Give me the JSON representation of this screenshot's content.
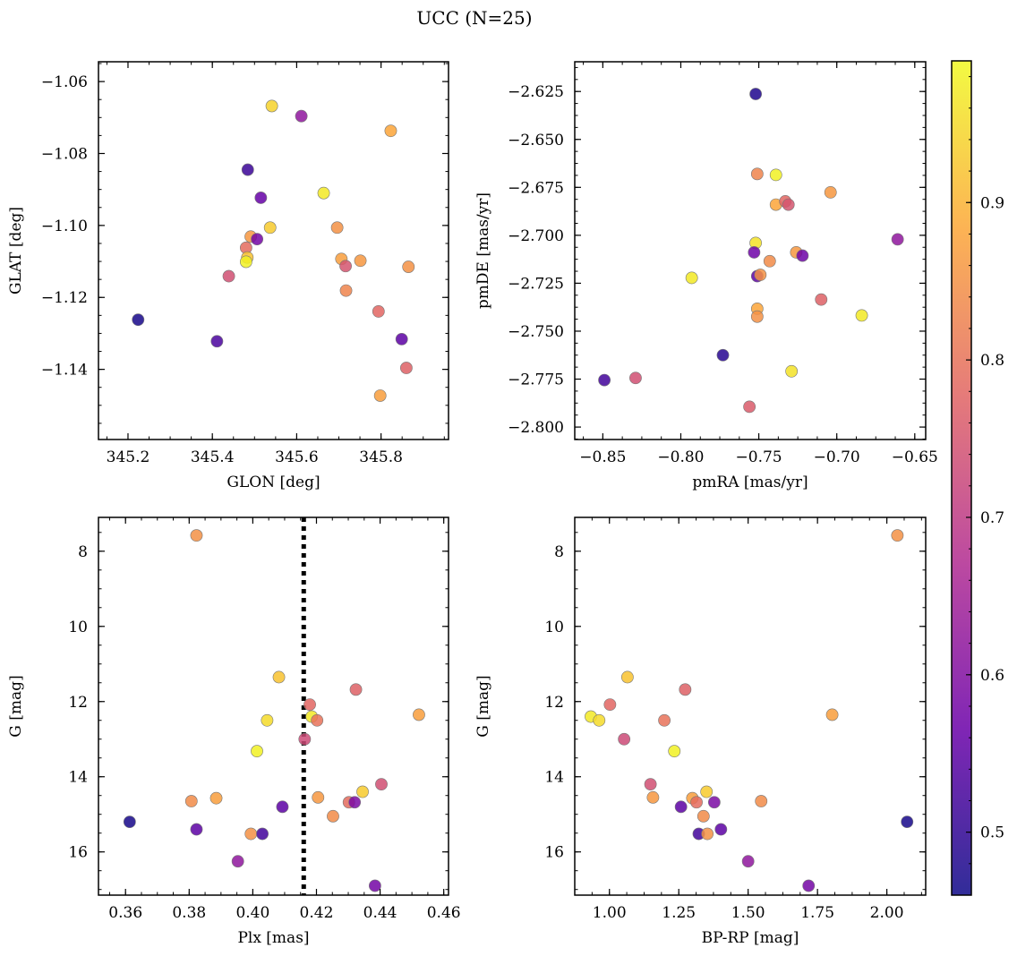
{
  "figure": {
    "title": "UCC (N=25)",
    "colorbar": {
      "range": [
        0.46,
        0.99
      ],
      "ticks": [
        0.5,
        0.6,
        0.7,
        0.8,
        0.9
      ],
      "tick_labels": [
        "0.5",
        "0.6",
        "0.7",
        "0.8",
        "0.9"
      ],
      "colormap": [
        "#0d0887",
        "#6a00a8",
        "#b12a90",
        "#e16462",
        "#fca636",
        "#f0f921"
      ]
    }
  },
  "chart_data": [
    {
      "type": "scatter",
      "xlabel": "GLON [deg]",
      "ylabel": "GLAT [deg]",
      "xlim": [
        345.13,
        345.96
      ],
      "ylim": [
        -1.1595,
        -1.0545
      ],
      "y_inverted": false,
      "xticks": [
        345.2,
        345.4,
        345.6,
        345.8
      ],
      "xtick_labels": [
        "345.2",
        "345.4",
        "345.6",
        "345.8"
      ],
      "yticks": [
        -1.06,
        -1.08,
        -1.1,
        -1.12,
        -1.14
      ],
      "ytick_labels": [
        "−1.06",
        "−1.08",
        "−1.10",
        "−1.12",
        "−1.14"
      ],
      "points": [
        {
          "x": 345.224,
          "y": -1.1262,
          "c": 0.47
        },
        {
          "x": 345.411,
          "y": -1.1322,
          "c": 0.53
        },
        {
          "x": 345.439,
          "y": -1.1141,
          "c": 0.74
        },
        {
          "x": 345.48,
          "y": -1.1062,
          "c": 0.79
        },
        {
          "x": 345.484,
          "y": -1.0845,
          "c": 0.51
        },
        {
          "x": 345.483,
          "y": -1.1089,
          "c": 0.92
        },
        {
          "x": 345.48,
          "y": -1.1101,
          "c": 0.98
        },
        {
          "x": 345.491,
          "y": -1.1031,
          "c": 0.86
        },
        {
          "x": 345.506,
          "y": -1.1038,
          "c": 0.58
        },
        {
          "x": 345.515,
          "y": -1.0923,
          "c": 0.56
        },
        {
          "x": 345.537,
          "y": -1.1006,
          "c": 0.93
        },
        {
          "x": 345.541,
          "y": -1.0668,
          "c": 0.94
        },
        {
          "x": 345.611,
          "y": -1.0696,
          "c": 0.62
        },
        {
          "x": 345.664,
          "y": -1.091,
          "c": 0.97
        },
        {
          "x": 345.696,
          "y": -1.1006,
          "c": 0.85
        },
        {
          "x": 345.706,
          "y": -1.1093,
          "c": 0.87
        },
        {
          "x": 345.716,
          "y": -1.1113,
          "c": 0.75
        },
        {
          "x": 345.717,
          "y": -1.1181,
          "c": 0.83
        },
        {
          "x": 345.751,
          "y": -1.1098,
          "c": 0.86
        },
        {
          "x": 345.794,
          "y": -1.1239,
          "c": 0.78
        },
        {
          "x": 345.798,
          "y": -1.1473,
          "c": 0.87
        },
        {
          "x": 345.823,
          "y": -1.0737,
          "c": 0.88
        },
        {
          "x": 345.849,
          "y": -1.1316,
          "c": 0.55
        },
        {
          "x": 345.86,
          "y": -1.1396,
          "c": 0.77
        },
        {
          "x": 345.865,
          "y": -1.1115,
          "c": 0.85
        }
      ]
    },
    {
      "type": "scatter",
      "xlabel": "pmRA [mas/yr]",
      "ylabel": "pmDE [mas/yr]",
      "xlim": [
        -0.868,
        -0.643
      ],
      "ylim": [
        -2.8065,
        -2.6095
      ],
      "y_inverted": false,
      "xticks": [
        -0.85,
        -0.8,
        -0.75,
        -0.7,
        -0.65
      ],
      "xtick_labels": [
        "−0.85",
        "−0.80",
        "−0.75",
        "−0.70",
        "−0.65"
      ],
      "yticks": [
        -2.625,
        -2.65,
        -2.675,
        -2.7,
        -2.725,
        -2.75,
        -2.775,
        -2.8
      ],
      "ytick_labels": [
        "−2.625",
        "−2.650",
        "−2.675",
        "−2.700",
        "−2.725",
        "−2.750",
        "−2.775",
        "−2.800"
      ],
      "points": [
        {
          "x": -0.849,
          "y": -2.7755,
          "c": 0.52
        },
        {
          "x": -0.829,
          "y": -2.7744,
          "c": 0.74
        },
        {
          "x": -0.793,
          "y": -2.7222,
          "c": 0.97
        },
        {
          "x": -0.773,
          "y": -2.7625,
          "c": 0.49
        },
        {
          "x": -0.756,
          "y": -2.7894,
          "c": 0.76
        },
        {
          "x": -0.752,
          "y": -2.6263,
          "c": 0.48
        },
        {
          "x": -0.751,
          "y": -2.668,
          "c": 0.83
        },
        {
          "x": -0.752,
          "y": -2.704,
          "c": 0.96
        },
        {
          "x": -0.753,
          "y": -2.7089,
          "c": 0.57
        },
        {
          "x": -0.751,
          "y": -2.7213,
          "c": 0.55
        },
        {
          "x": -0.749,
          "y": -2.7206,
          "c": 0.85
        },
        {
          "x": -0.751,
          "y": -2.7383,
          "c": 0.88
        },
        {
          "x": -0.751,
          "y": -2.7424,
          "c": 0.85
        },
        {
          "x": -0.739,
          "y": -2.6685,
          "c": 0.98
        },
        {
          "x": -0.739,
          "y": -2.684,
          "c": 0.88
        },
        {
          "x": -0.743,
          "y": -2.7135,
          "c": 0.84
        },
        {
          "x": -0.733,
          "y": -2.6823,
          "c": 0.78
        },
        {
          "x": -0.731,
          "y": -2.684,
          "c": 0.75
        },
        {
          "x": -0.726,
          "y": -2.7089,
          "c": 0.86
        },
        {
          "x": -0.722,
          "y": -2.7106,
          "c": 0.57
        },
        {
          "x": -0.729,
          "y": -2.7709,
          "c": 0.96
        },
        {
          "x": -0.71,
          "y": -2.7335,
          "c": 0.77
        },
        {
          "x": -0.704,
          "y": -2.6776,
          "c": 0.86
        },
        {
          "x": -0.684,
          "y": -2.7418,
          "c": 0.97
        },
        {
          "x": -0.661,
          "y": -2.7021,
          "c": 0.62
        }
      ]
    },
    {
      "type": "scatter",
      "xlabel": "Plx [mas]",
      "ylabel": "G [mag]",
      "xlim": [
        0.3515,
        0.4615
      ],
      "ylim": [
        7.1,
        17.15
      ],
      "y_inverted": true,
      "vline": 0.416,
      "xticks": [
        0.36,
        0.38,
        0.4,
        0.42,
        0.44,
        0.46
      ],
      "xtick_labels": [
        "0.36",
        "0.38",
        "0.40",
        "0.42",
        "0.44",
        "0.46"
      ],
      "yticks": [
        8,
        10,
        12,
        14,
        16
      ],
      "ytick_labels": [
        "8",
        "10",
        "12",
        "14",
        "16"
      ],
      "points": [
        {
          "x": 0.3613,
          "y": 15.2,
          "c": 0.47
        },
        {
          "x": 0.3807,
          "y": 14.65,
          "c": 0.84
        },
        {
          "x": 0.3823,
          "y": 7.58,
          "c": 0.85
        },
        {
          "x": 0.3823,
          "y": 15.4,
          "c": 0.55
        },
        {
          "x": 0.3885,
          "y": 14.57,
          "c": 0.87
        },
        {
          "x": 0.3953,
          "y": 16.25,
          "c": 0.62
        },
        {
          "x": 0.3994,
          "y": 15.52,
          "c": 0.85
        },
        {
          "x": 0.4013,
          "y": 13.32,
          "c": 0.98
        },
        {
          "x": 0.403,
          "y": 15.52,
          "c": 0.52
        },
        {
          "x": 0.4045,
          "y": 12.5,
          "c": 0.95
        },
        {
          "x": 0.4082,
          "y": 11.35,
          "c": 0.92
        },
        {
          "x": 0.4093,
          "y": 14.8,
          "c": 0.55
        },
        {
          "x": 0.4163,
          "y": 13.0,
          "c": 0.73
        },
        {
          "x": 0.4179,
          "y": 12.08,
          "c": 0.78
        },
        {
          "x": 0.4185,
          "y": 12.4,
          "c": 0.97
        },
        {
          "x": 0.4202,
          "y": 12.5,
          "c": 0.8
        },
        {
          "x": 0.4205,
          "y": 14.55,
          "c": 0.86
        },
        {
          "x": 0.4252,
          "y": 15.05,
          "c": 0.84
        },
        {
          "x": 0.4302,
          "y": 14.68,
          "c": 0.79
        },
        {
          "x": 0.432,
          "y": 14.68,
          "c": 0.59
        },
        {
          "x": 0.4324,
          "y": 11.68,
          "c": 0.77
        },
        {
          "x": 0.4345,
          "y": 14.4,
          "c": 0.93
        },
        {
          "x": 0.4384,
          "y": 16.9,
          "c": 0.58
        },
        {
          "x": 0.4404,
          "y": 14.2,
          "c": 0.74
        },
        {
          "x": 0.4522,
          "y": 12.35,
          "c": 0.87
        }
      ]
    },
    {
      "type": "scatter",
      "xlabel": "BP-RP [mag]",
      "ylabel": "G [mag]",
      "xlim": [
        0.875,
        2.14
      ],
      "ylim": [
        7.1,
        17.15
      ],
      "y_inverted": true,
      "xticks": [
        1.0,
        1.25,
        1.5,
        1.75,
        2.0
      ],
      "xtick_labels": [
        "1.00",
        "1.25",
        "1.50",
        "1.75",
        "2.00"
      ],
      "yticks": [
        8,
        10,
        12,
        14,
        16
      ],
      "ytick_labels": [
        "8",
        "10",
        "12",
        "14",
        "16"
      ],
      "points": [
        {
          "x": 0.933,
          "y": 12.4,
          "c": 0.97
        },
        {
          "x": 0.963,
          "y": 12.5,
          "c": 0.95
        },
        {
          "x": 1.002,
          "y": 12.08,
          "c": 0.78
        },
        {
          "x": 1.053,
          "y": 13.0,
          "c": 0.73
        },
        {
          "x": 1.065,
          "y": 11.35,
          "c": 0.92
        },
        {
          "x": 1.148,
          "y": 14.2,
          "c": 0.74
        },
        {
          "x": 1.157,
          "y": 14.55,
          "c": 0.86
        },
        {
          "x": 1.198,
          "y": 12.5,
          "c": 0.8
        },
        {
          "x": 1.234,
          "y": 13.32,
          "c": 0.98
        },
        {
          "x": 1.258,
          "y": 14.8,
          "c": 0.55
        },
        {
          "x": 1.273,
          "y": 11.68,
          "c": 0.77
        },
        {
          "x": 1.299,
          "y": 14.57,
          "c": 0.87
        },
        {
          "x": 1.314,
          "y": 14.68,
          "c": 0.79
        },
        {
          "x": 1.322,
          "y": 15.52,
          "c": 0.52
        },
        {
          "x": 1.339,
          "y": 15.05,
          "c": 0.84
        },
        {
          "x": 1.35,
          "y": 14.4,
          "c": 0.93
        },
        {
          "x": 1.353,
          "y": 15.52,
          "c": 0.85
        },
        {
          "x": 1.378,
          "y": 14.68,
          "c": 0.59
        },
        {
          "x": 1.402,
          "y": 15.4,
          "c": 0.55
        },
        {
          "x": 1.5,
          "y": 16.25,
          "c": 0.62
        },
        {
          "x": 1.547,
          "y": 14.65,
          "c": 0.84
        },
        {
          "x": 1.718,
          "y": 16.9,
          "c": 0.58
        },
        {
          "x": 1.803,
          "y": 12.35,
          "c": 0.87
        },
        {
          "x": 2.038,
          "y": 7.58,
          "c": 0.85
        },
        {
          "x": 2.073,
          "y": 15.2,
          "c": 0.47
        }
      ]
    }
  ]
}
